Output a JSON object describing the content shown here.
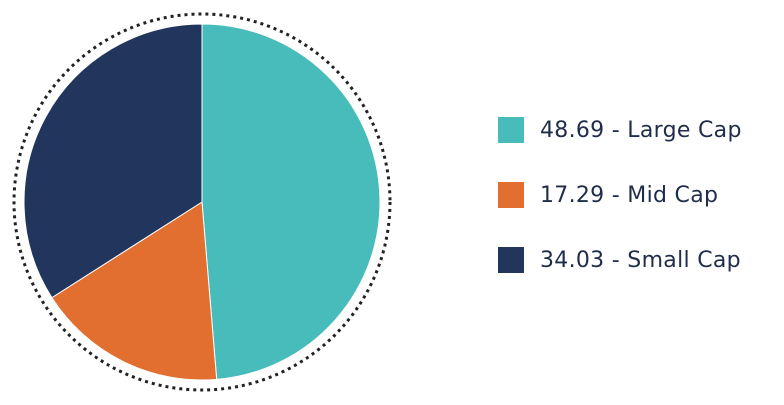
{
  "chart_data": {
    "type": "pie",
    "slices": [
      {
        "label": "48.69 - Large Cap",
        "value": 48.69,
        "color": "#48bcba"
      },
      {
        "label": "17.29 - Mid Cap",
        "value": 17.29,
        "color": "#e26e30"
      },
      {
        "label": "34.03 - Small Cap",
        "value": 34.03,
        "color": "#22355c"
      }
    ],
    "start": "12 o'clock",
    "direction": "clockwise",
    "outer_ring": "dotted",
    "legend_position": "right"
  }
}
